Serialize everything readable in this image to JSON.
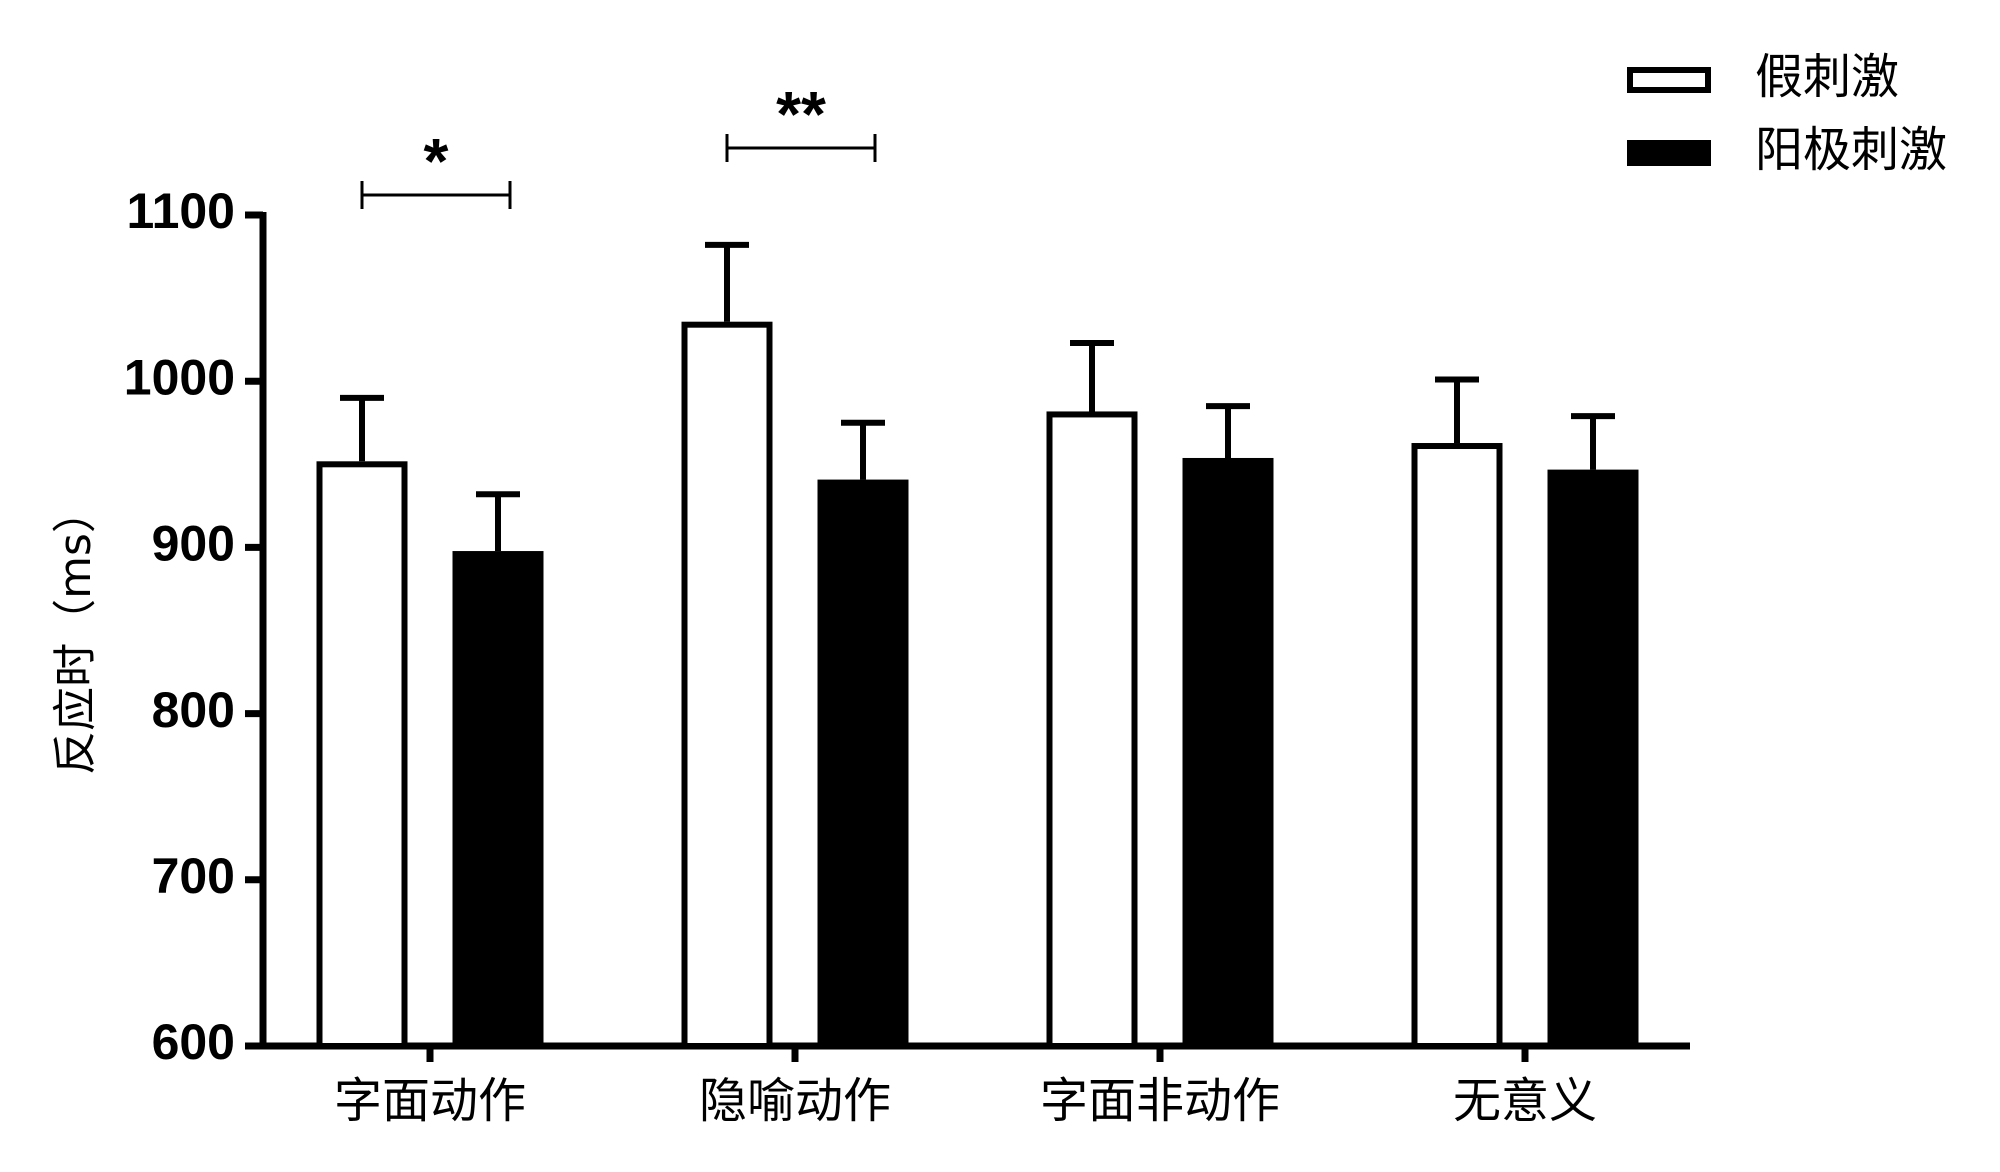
{
  "chart_data": {
    "type": "bar",
    "title": "",
    "xlabel": "",
    "ylabel": "反应时（ms）",
    "ylim": [
      600,
      1100
    ],
    "yticks": [
      600,
      700,
      800,
      900,
      1000,
      1100
    ],
    "grid": false,
    "legend_position": "top-right",
    "categories": [
      "字面动作",
      "隐喻动作",
      "字面非动作",
      "无意义"
    ],
    "series": [
      {
        "name": "假刺激",
        "fill": "#ffffff",
        "stroke": "#000000",
        "values": [
          950,
          1034,
          980,
          961
        ],
        "errors": [
          40,
          48,
          43,
          40
        ]
      },
      {
        "name": "阳极刺激",
        "fill": "#000000",
        "stroke": "#000000",
        "values": [
          896,
          939,
          952,
          945
        ],
        "errors": [
          36,
          36,
          33,
          34
        ]
      }
    ],
    "annotations": [
      {
        "category": 0,
        "label": "*"
      },
      {
        "category": 1,
        "label": "**"
      }
    ]
  }
}
